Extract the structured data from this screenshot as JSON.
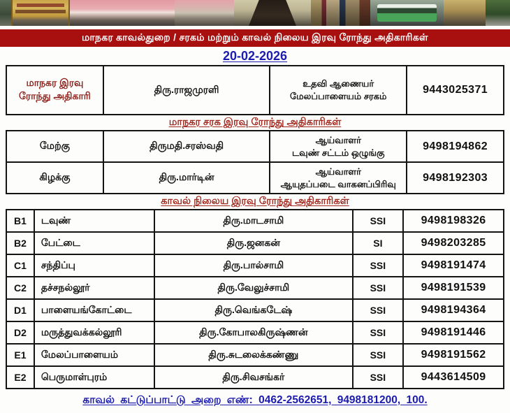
{
  "banner": {
    "title": "மாநகர காவல்துறை / சரகம் மற்றும் காவல் நிலைய இரவு ரோந்து அதிகாரிகள்",
    "date": "20-02-2026"
  },
  "city_officer": {
    "role": "மாநகர இரவு ரோந்து அதிகாரி",
    "name": "திரு.ராஜமுரளி",
    "designation_line1": "உதவி ஆணையர்",
    "designation_line2": "மேலப்பாளையம் சரகம்",
    "phone": "9443025371"
  },
  "range_section": {
    "heading": "மாநகர சரக இரவு ரோந்து அதிகாரிகள்",
    "rows": [
      {
        "region": "மேற்கு",
        "name": "திருமதி.சரஸ்வதி",
        "designation_line1": "ஆய்வாளர்",
        "designation_line2": "டவுண் சட்டம் ஒழுங்கு",
        "phone": "9498194862"
      },
      {
        "region": "கிழக்கு",
        "name": "திரு.மார்டின்",
        "designation_line1": "ஆய்வாளர்",
        "designation_line2": "ஆயுதப்படை வாகனப்பிரிவு",
        "phone": "9498192303"
      }
    ]
  },
  "station_section": {
    "heading": "காவல் நிலைய இரவு ரோந்து அதிகாரிகள்",
    "rows": [
      {
        "code": "B1",
        "station": "டவுண்",
        "name": "திரு.மாடசாமி",
        "rank": "SSI",
        "phone": "9498198326"
      },
      {
        "code": "B2",
        "station": "பேட்டை",
        "name": "திரு.ஜனகன்",
        "rank": "SI",
        "phone": "9498203285"
      },
      {
        "code": "C1",
        "station": "சந்திப்பு",
        "name": "திரு.பால்சாமி",
        "rank": "SSI",
        "phone": "9498191474"
      },
      {
        "code": "C2",
        "station": "தச்சநல்லூர்",
        "name": "திரு.வேலுச்சாமி",
        "rank": "SSI",
        "phone": "9498191539"
      },
      {
        "code": "D1",
        "station": "பாளையங்கோட்டை",
        "name": "திரு.வெங்கடேஷ்",
        "rank": "SSI",
        "phone": "9498194364"
      },
      {
        "code": "D2",
        "station": "மருத்துவக்கல்லூரி",
        "name": "திரு.கோபாலகிருஷ்ணன்",
        "rank": "SSI",
        "phone": "9498191446"
      },
      {
        "code": "E1",
        "station": "மேலப்பாளையம்",
        "name": "திரு.சுடலைக்கண்ணு",
        "rank": "SSI",
        "phone": "9498191562"
      },
      {
        "code": "E2",
        "station": "பெருமாள்புரம்",
        "name": "திரு.சிவசங்கர்",
        "rank": "SSI",
        "phone": "9443614509"
      }
    ]
  },
  "footer": {
    "control_room": "காவல் கட்டுப்பாட்டு அறை எண்: 0462-2562651, 9498181200, 100."
  },
  "colors": {
    "banner_red": "#a80f0f",
    "heading_red": "#a12a21",
    "maroon_text": "#8e1d18",
    "link_blue": "#1c1cae"
  }
}
